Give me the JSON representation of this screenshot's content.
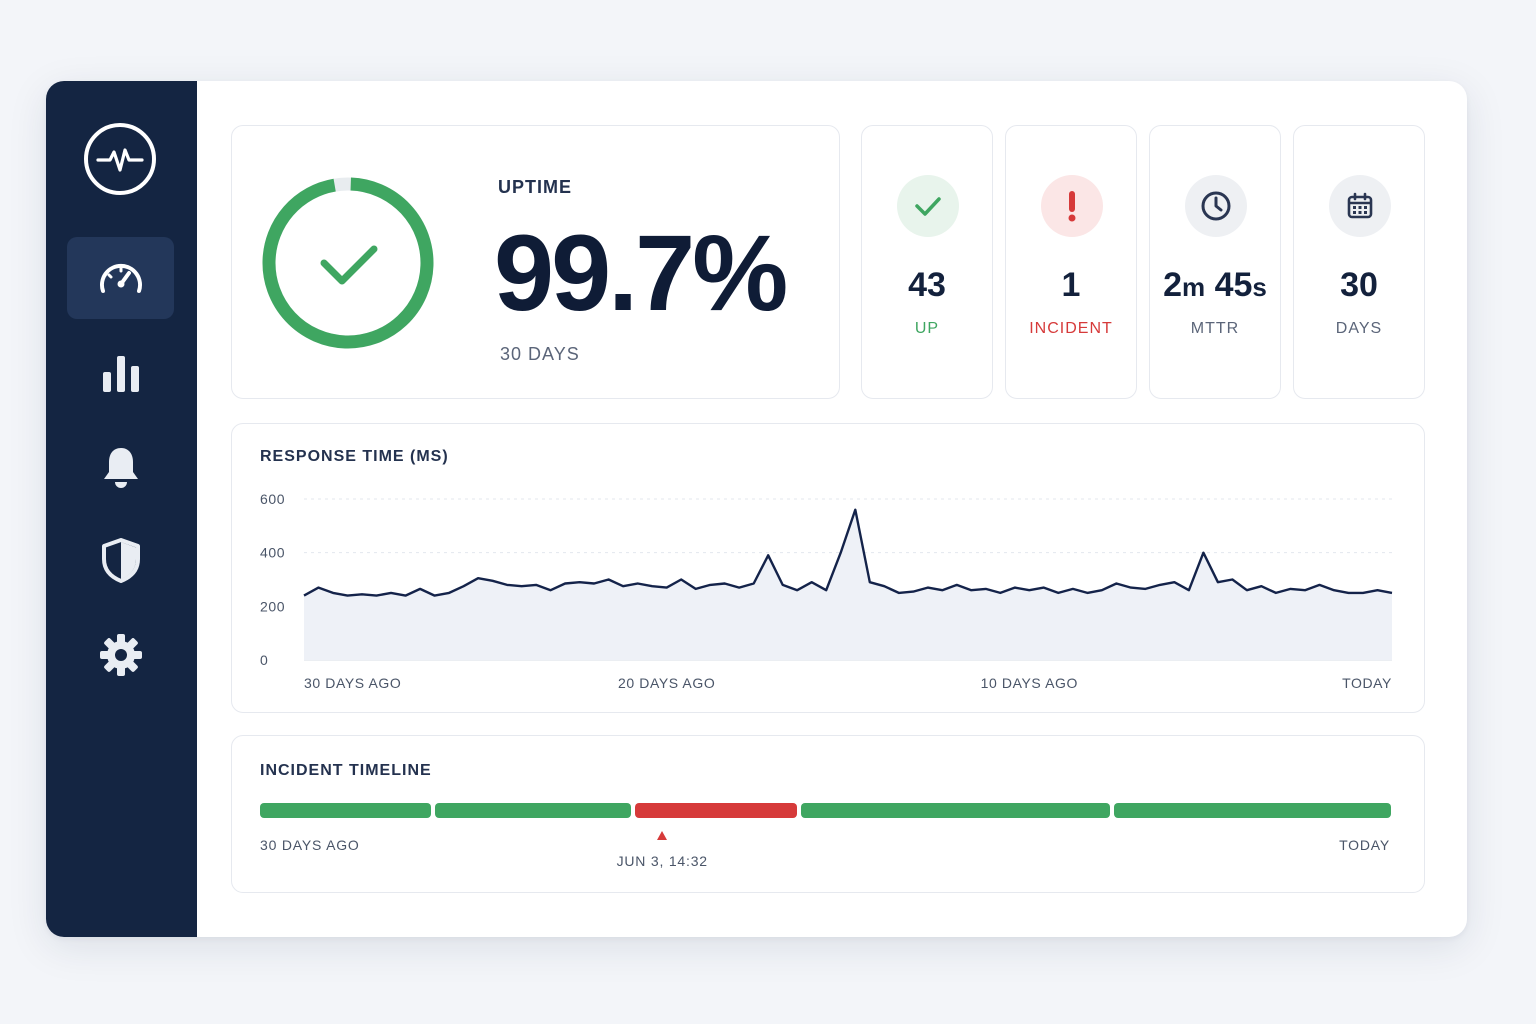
{
  "colors": {
    "sidebar_bg": "#142542",
    "sidebar_active": "#23375a",
    "green": "#3fa661",
    "red": "#d63a3a",
    "line": "#14234a"
  },
  "sidebar": {
    "logo_icon": "pulse-icon",
    "items": [
      {
        "icon": "gauge-icon",
        "active": true
      },
      {
        "icon": "bar-chart-icon",
        "active": false
      },
      {
        "icon": "bell-icon",
        "active": false
      },
      {
        "icon": "shield-icon",
        "active": false
      },
      {
        "icon": "gear-icon",
        "active": false
      }
    ]
  },
  "uptime": {
    "label": "UPTIME",
    "value": "99.7%",
    "percent": 99.7,
    "period": "30 DAYS",
    "icon": "check-icon"
  },
  "stats": [
    {
      "icon": "check-icon",
      "value": "43",
      "label": "UP",
      "color": "#3fa661"
    },
    {
      "icon": "exclamation-icon",
      "value": "1",
      "label": "INCIDENT",
      "color": "#d63a3a"
    },
    {
      "icon": "clock-icon",
      "value_parts": [
        "2",
        "m",
        " 45",
        "s"
      ],
      "label": "MTTR",
      "color": "#5b6579"
    },
    {
      "icon": "calendar-icon",
      "value": "30",
      "label": "DAYS",
      "color": "#5b6579"
    }
  ],
  "response_chart": {
    "title": "RESPONSE TIME (MS)",
    "chart_data": {
      "type": "area",
      "title": "RESPONSE TIME (MS)",
      "ylim": [
        0,
        600
      ],
      "yticks": [
        "0",
        "200",
        "400",
        "600"
      ],
      "ytick_values": [
        0,
        200,
        400,
        600
      ],
      "xlim": [
        30,
        0
      ],
      "xticks": [
        "30 DAYS AGO",
        "20 DAYS AGO",
        "10 DAYS AGO",
        "TODAY"
      ],
      "xtick_values": [
        30,
        20,
        10,
        0
      ],
      "grid": true,
      "x_days_ago": [
        30.0,
        29.6,
        29.2,
        28.8,
        28.4,
        28.0,
        27.6,
        27.2,
        26.8,
        26.4,
        26.0,
        25.6,
        25.2,
        24.8,
        24.4,
        24.0,
        23.6,
        23.2,
        22.8,
        22.4,
        22.0,
        21.6,
        21.2,
        20.8,
        20.4,
        20.0,
        19.6,
        19.2,
        18.8,
        18.4,
        18.0,
        17.6,
        17.2,
        16.8,
        16.4,
        16.0,
        15.6,
        15.2,
        14.8,
        14.4,
        14.0,
        13.6,
        13.2,
        12.8,
        12.4,
        12.0,
        11.6,
        11.2,
        10.8,
        10.4,
        10.0,
        9.6,
        9.2,
        8.8,
        8.4,
        8.0,
        7.6,
        7.2,
        6.8,
        6.4,
        6.0,
        5.6,
        5.2,
        4.8,
        4.4,
        4.0,
        3.6,
        3.2,
        2.8,
        2.4,
        2.0,
        1.6,
        1.2,
        0.8,
        0.4,
        0.0
      ],
      "values": [
        240,
        270,
        250,
        240,
        245,
        240,
        250,
        240,
        265,
        240,
        250,
        275,
        305,
        295,
        280,
        275,
        280,
        260,
        285,
        290,
        285,
        300,
        275,
        285,
        275,
        270,
        300,
        265,
        280,
        285,
        270,
        285,
        390,
        280,
        260,
        290,
        260,
        400,
        560,
        290,
        275,
        250,
        255,
        270,
        260,
        280,
        260,
        265,
        250,
        270,
        260,
        270,
        250,
        265,
        250,
        260,
        285,
        270,
        265,
        280,
        290,
        260,
        400,
        290,
        300,
        260,
        275,
        250,
        265,
        260,
        280,
        260,
        250,
        250,
        260,
        250
      ]
    }
  },
  "timeline": {
    "title": "INCIDENT TIMELINE",
    "start_label": "30 DAYS AGO",
    "end_label": "TODAY",
    "incident_marker": "JUN 3, 14:32",
    "segments": [
      {
        "status": "up",
        "from_days_ago": 30.0,
        "to_days_ago": 25.4
      },
      {
        "status": "up",
        "from_days_ago": 25.4,
        "to_days_ago": 20.1
      },
      {
        "status": "incident",
        "from_days_ago": 20.1,
        "to_days_ago": 15.7
      },
      {
        "status": "up",
        "from_days_ago": 15.7,
        "to_days_ago": 7.4
      },
      {
        "status": "up",
        "from_days_ago": 7.4,
        "to_days_ago": 0.0
      }
    ]
  }
}
